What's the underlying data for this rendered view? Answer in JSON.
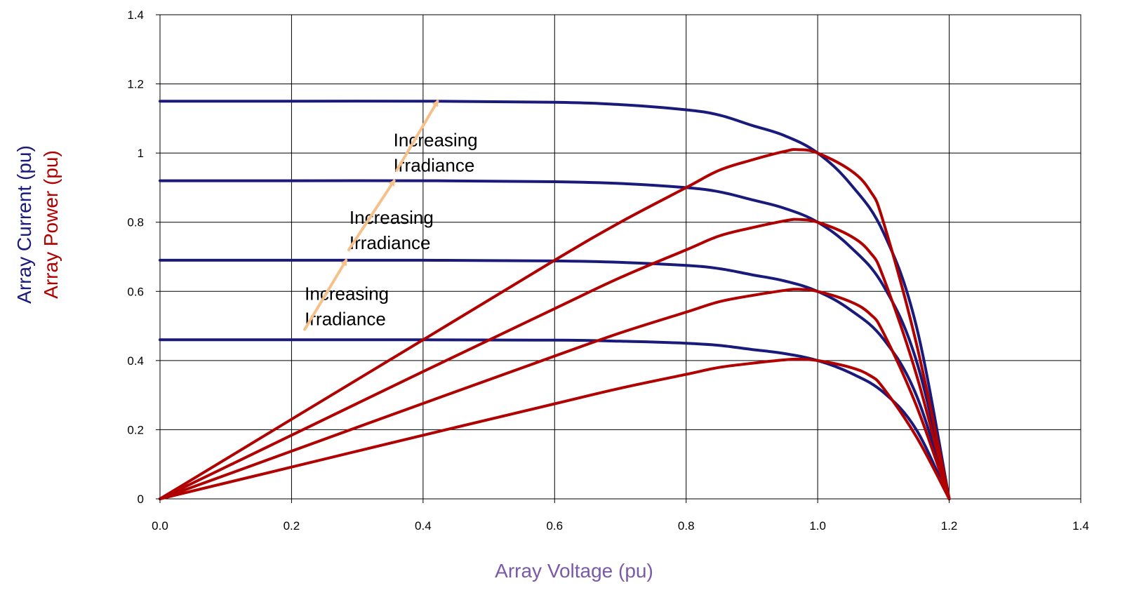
{
  "chart_data": {
    "type": "line",
    "xlabel": "Array Voltage (pu)",
    "ylabel_current": "Array Current (pu)",
    "ylabel_power": "Array Power (pu)",
    "xlim": [
      0,
      1.4
    ],
    "ylim": [
      0,
      1.4
    ],
    "x_ticks": [
      "0.0",
      "0.2",
      "0.4",
      "0.6",
      "0.8",
      "1.0",
      "1.2",
      "1.4"
    ],
    "y_ticks": [
      "0",
      "0.2",
      "0.4",
      "0.6",
      "0.8",
      "1",
      "1.2",
      "1.4"
    ],
    "grid": true,
    "colors": {
      "current": "#1a1a7a",
      "power": "#b00000",
      "xlabel": "#7a5aa8",
      "arrow": "#f5c08a"
    },
    "series": [
      {
        "kind": "current",
        "x": [
          0,
          0.2,
          0.4,
          0.6,
          0.7,
          0.8,
          0.85,
          0.9,
          0.95,
          1.0,
          1.05,
          1.1,
          1.15,
          1.2
        ],
        "y": [
          1.15,
          1.15,
          1.15,
          1.147,
          1.14,
          1.125,
          1.11,
          1.08,
          1.05,
          1.0,
          0.91,
          0.77,
          0.5,
          0.0
        ]
      },
      {
        "kind": "current",
        "x": [
          0,
          0.2,
          0.4,
          0.6,
          0.7,
          0.8,
          0.85,
          0.9,
          0.95,
          1.0,
          1.05,
          1.1,
          1.15,
          1.2
        ],
        "y": [
          0.92,
          0.92,
          0.92,
          0.917,
          0.912,
          0.9,
          0.888,
          0.865,
          0.84,
          0.8,
          0.728,
          0.616,
          0.4,
          0.0
        ]
      },
      {
        "kind": "current",
        "x": [
          0,
          0.2,
          0.4,
          0.6,
          0.7,
          0.8,
          0.85,
          0.9,
          0.95,
          1.0,
          1.05,
          1.1,
          1.15,
          1.2
        ],
        "y": [
          0.69,
          0.69,
          0.69,
          0.688,
          0.684,
          0.675,
          0.666,
          0.648,
          0.63,
          0.6,
          0.546,
          0.462,
          0.3,
          0.0
        ]
      },
      {
        "kind": "current",
        "x": [
          0,
          0.2,
          0.4,
          0.6,
          0.7,
          0.8,
          0.85,
          0.9,
          0.95,
          1.0,
          1.05,
          1.1,
          1.15,
          1.2
        ],
        "y": [
          0.46,
          0.46,
          0.46,
          0.459,
          0.456,
          0.45,
          0.444,
          0.432,
          0.42,
          0.4,
          0.364,
          0.308,
          0.2,
          0.0
        ]
      },
      {
        "kind": "power",
        "x": [
          0,
          0.2,
          0.4,
          0.6,
          0.7,
          0.8,
          0.85,
          0.9,
          0.95,
          0.97,
          1.0,
          1.05,
          1.08,
          1.1,
          1.15,
          1.2
        ],
        "y": [
          0,
          0.23,
          0.46,
          0.69,
          0.8,
          0.9,
          0.95,
          0.98,
          1.005,
          1.01,
          1.0,
          0.95,
          0.89,
          0.8,
          0.45,
          0.0
        ]
      },
      {
        "kind": "power",
        "x": [
          0,
          0.2,
          0.4,
          0.6,
          0.7,
          0.8,
          0.85,
          0.9,
          0.95,
          0.97,
          1.0,
          1.05,
          1.08,
          1.1,
          1.15,
          1.2
        ],
        "y": [
          0,
          0.184,
          0.368,
          0.55,
          0.64,
          0.72,
          0.76,
          0.784,
          0.804,
          0.808,
          0.8,
          0.76,
          0.712,
          0.64,
          0.36,
          0.0
        ]
      },
      {
        "kind": "power",
        "x": [
          0,
          0.2,
          0.4,
          0.6,
          0.7,
          0.8,
          0.85,
          0.9,
          0.95,
          0.97,
          1.0,
          1.05,
          1.08,
          1.1,
          1.15,
          1.2
        ],
        "y": [
          0,
          0.138,
          0.276,
          0.413,
          0.48,
          0.54,
          0.57,
          0.588,
          0.603,
          0.606,
          0.6,
          0.57,
          0.534,
          0.48,
          0.27,
          0.0
        ]
      },
      {
        "kind": "power",
        "x": [
          0,
          0.2,
          0.4,
          0.6,
          0.7,
          0.8,
          0.85,
          0.9,
          0.95,
          0.97,
          1.0,
          1.05,
          1.08,
          1.1,
          1.15,
          1.2
        ],
        "y": [
          0,
          0.092,
          0.184,
          0.275,
          0.32,
          0.36,
          0.38,
          0.392,
          0.402,
          0.404,
          0.4,
          0.38,
          0.356,
          0.32,
          0.18,
          0.0
        ]
      }
    ],
    "annotations": [
      {
        "text": [
          "Increasing",
          "Irradiance"
        ],
        "x": 0.355,
        "y": 1.02
      },
      {
        "text": [
          "Increasing",
          "Irradiance"
        ],
        "x": 0.288,
        "y": 0.795
      },
      {
        "text": [
          "Increasing",
          "Irradiance"
        ],
        "x": 0.22,
        "y": 0.575
      }
    ],
    "arrows": [
      {
        "from": [
          0.22,
          0.49
        ],
        "to": [
          0.283,
          0.69
        ]
      },
      {
        "from": [
          0.287,
          0.72
        ],
        "to": [
          0.356,
          0.92
        ]
      },
      {
        "from": [
          0.36,
          0.95
        ],
        "to": [
          0.422,
          1.15
        ]
      }
    ]
  }
}
